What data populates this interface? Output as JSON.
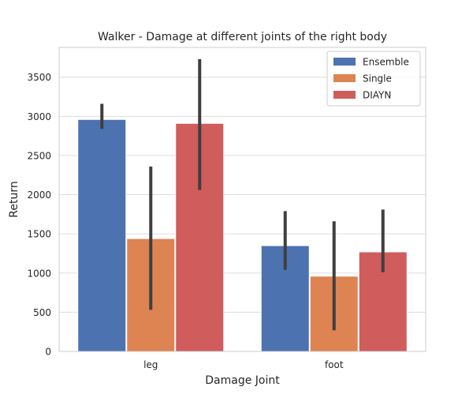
{
  "chart_data": {
    "type": "bar",
    "title": "Walker - Damage at different joints of the right body",
    "xlabel": "Damage Joint",
    "ylabel": "Return",
    "categories": [
      "leg",
      "foot"
    ],
    "ylim": [
      0,
      3880
    ],
    "yticks": [
      0,
      500,
      1000,
      1500,
      2000,
      2500,
      3000,
      3500
    ],
    "grid": "horizontal",
    "legend_position": "top-right",
    "series": [
      {
        "name": "Ensemble",
        "color": "#4c72b0",
        "values": [
          2960,
          1350
        ],
        "error_low": [
          2840,
          1040
        ],
        "error_high": [
          3160,
          1790
        ]
      },
      {
        "name": "Single",
        "color": "#dd8452",
        "values": [
          1440,
          960
        ],
        "error_low": [
          530,
          270
        ],
        "error_high": [
          2360,
          1660
        ]
      },
      {
        "name": "DIAYN",
        "color": "#d05c5c",
        "values": [
          2910,
          1270
        ],
        "error_low": [
          2060,
          1010
        ],
        "error_high": [
          3730,
          1810
        ]
      }
    ]
  }
}
